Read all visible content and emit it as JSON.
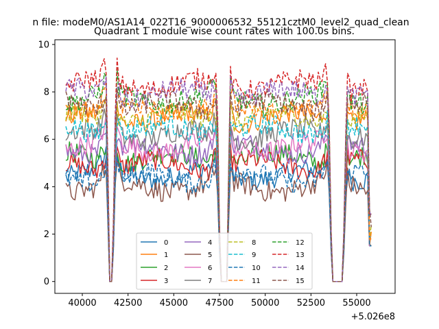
{
  "chart_data": {
    "type": "line",
    "suptitle": "n file: modeM0/AS1A14_022T16_9000006532_55121cztM0_level2_quad_clean",
    "title": "Quadrant 1 module wise count rates with 100.0s bins.",
    "xlabel": "",
    "ylabel": "",
    "x_offset_label": "+5.026e8",
    "xlim": [
      38500,
      57100
    ],
    "ylim": [
      -0.5,
      10.2
    ],
    "x_ticks": [
      40000,
      42500,
      45000,
      47500,
      50000,
      52500,
      55000
    ],
    "x_tick_labels": [
      "40000",
      "42500",
      "45000",
      "47500",
      "50000",
      "52500",
      "55000"
    ],
    "y_ticks": [
      0,
      2,
      4,
      6,
      8,
      10
    ],
    "y_tick_labels": [
      "0",
      "2",
      "4",
      "6",
      "8",
      "10"
    ],
    "x_range": [
      39100,
      55800
    ],
    "gaps": [
      {
        "x": [
          41500,
          41650
        ],
        "y": 0.0
      },
      {
        "x": [
          47550,
          47900
        ],
        "y": 0.0
      },
      {
        "x": [
          53650,
          54250
        ],
        "y": 0.0
      }
    ],
    "series": [
      {
        "name": "0",
        "level": 4.5,
        "color": "#1f77b4",
        "style": "solid"
      },
      {
        "name": "1",
        "level": 6.9,
        "color": "#ff7f0e",
        "style": "solid"
      },
      {
        "name": "2",
        "level": 5.2,
        "color": "#2ca02c",
        "style": "solid"
      },
      {
        "name": "3",
        "level": 4.9,
        "color": "#d62728",
        "style": "solid"
      },
      {
        "name": "4",
        "level": 5.6,
        "color": "#9467bd",
        "style": "solid"
      },
      {
        "name": "5",
        "level": 4.0,
        "color": "#8c564b",
        "style": "solid"
      },
      {
        "name": "6",
        "level": 5.7,
        "color": "#e377c2",
        "style": "solid"
      },
      {
        "name": "7",
        "level": 6.2,
        "color": "#7f7f7f",
        "style": "solid"
      },
      {
        "name": "8",
        "level": 6.9,
        "color": "#bcbd22",
        "style": "dashed"
      },
      {
        "name": "9",
        "level": 6.4,
        "color": "#17becf",
        "style": "dashed"
      },
      {
        "name": "10",
        "level": 4.4,
        "color": "#1f77b4",
        "style": "dashed"
      },
      {
        "name": "11",
        "level": 7.3,
        "color": "#ff7f0e",
        "style": "dashed"
      },
      {
        "name": "12",
        "level": 7.7,
        "color": "#2ca02c",
        "style": "dashed"
      },
      {
        "name": "13",
        "level": 8.3,
        "color": "#d62728",
        "style": "dashed"
      },
      {
        "name": "14",
        "level": 7.9,
        "color": "#9467bd",
        "style": "dashed"
      },
      {
        "name": "15",
        "level": 7.4,
        "color": "#8c564b",
        "style": "dashed"
      }
    ],
    "legend": {
      "location": "lower center",
      "columns": 4
    }
  }
}
